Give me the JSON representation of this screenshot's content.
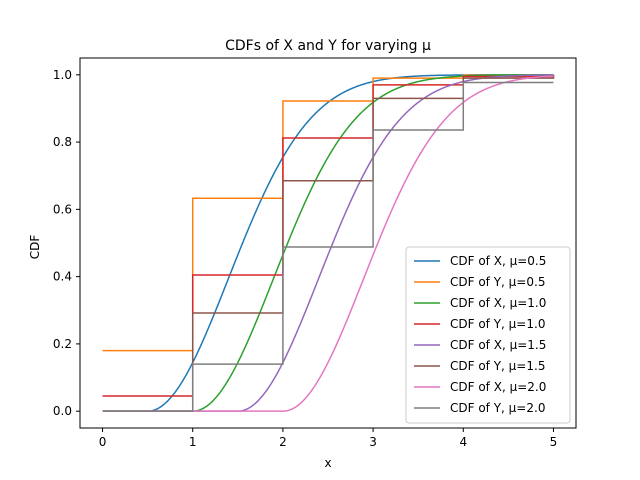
{
  "chart_data": {
    "type": "line",
    "title": "CDFs of X and Y for varying μ",
    "xlabel": "x",
    "ylabel": "CDF",
    "xlim": [
      -0.25,
      5.25
    ],
    "ylim": [
      -0.05,
      1.05
    ],
    "xticks": [
      0,
      1,
      2,
      3,
      4,
      5
    ],
    "yticks": [
      0.0,
      0.2,
      0.4,
      0.6,
      0.8,
      1.0
    ],
    "xtick_labels": [
      "0",
      "1",
      "2",
      "3",
      "4",
      "5"
    ],
    "ytick_labels": [
      "0.0",
      "0.2",
      "0.4",
      "0.6",
      "0.8",
      "1.0"
    ],
    "grid": false,
    "legend_position": "lower-right",
    "series": [
      {
        "name": "CDF of X, μ=0.5",
        "kind": "continuous",
        "mu": 0.5,
        "color": "#1f77b4"
      },
      {
        "name": "CDF of Y, μ=0.5",
        "kind": "step",
        "color": "#ff7f0e",
        "x": [
          0,
          1,
          2,
          3,
          4,
          5
        ],
        "y": [
          0.18,
          0.633,
          0.922,
          0.99,
          0.999,
          1.0
        ]
      },
      {
        "name": "CDF of X, μ=1.0",
        "kind": "continuous",
        "mu": 1.0,
        "color": "#2ca02c"
      },
      {
        "name": "CDF of Y, μ=1.0",
        "kind": "step",
        "color": "#d62728",
        "x": [
          0,
          1,
          2,
          3,
          4,
          5
        ],
        "y": [
          0.045,
          0.405,
          0.812,
          0.97,
          0.995,
          1.0
        ]
      },
      {
        "name": "CDF of X, μ=1.5",
        "kind": "continuous",
        "mu": 1.5,
        "color": "#9467bd"
      },
      {
        "name": "CDF of Y, μ=1.5",
        "kind": "step",
        "color": "#8c564b",
        "x": [
          0,
          1,
          2,
          3,
          4,
          5
        ],
        "y": [
          0.0,
          0.292,
          0.685,
          0.93,
          0.99,
          1.0
        ]
      },
      {
        "name": "CDF of X, μ=2.0",
        "kind": "continuous",
        "mu": 2.0,
        "color": "#e377c2"
      },
      {
        "name": "CDF of Y, μ=2.0",
        "kind": "step",
        "color": "#7f7f7f",
        "x": [
          0,
          1,
          2,
          3,
          4,
          5
        ],
        "y": [
          0.0,
          0.14,
          0.488,
          0.836,
          0.977,
          0.977
        ]
      }
    ]
  }
}
